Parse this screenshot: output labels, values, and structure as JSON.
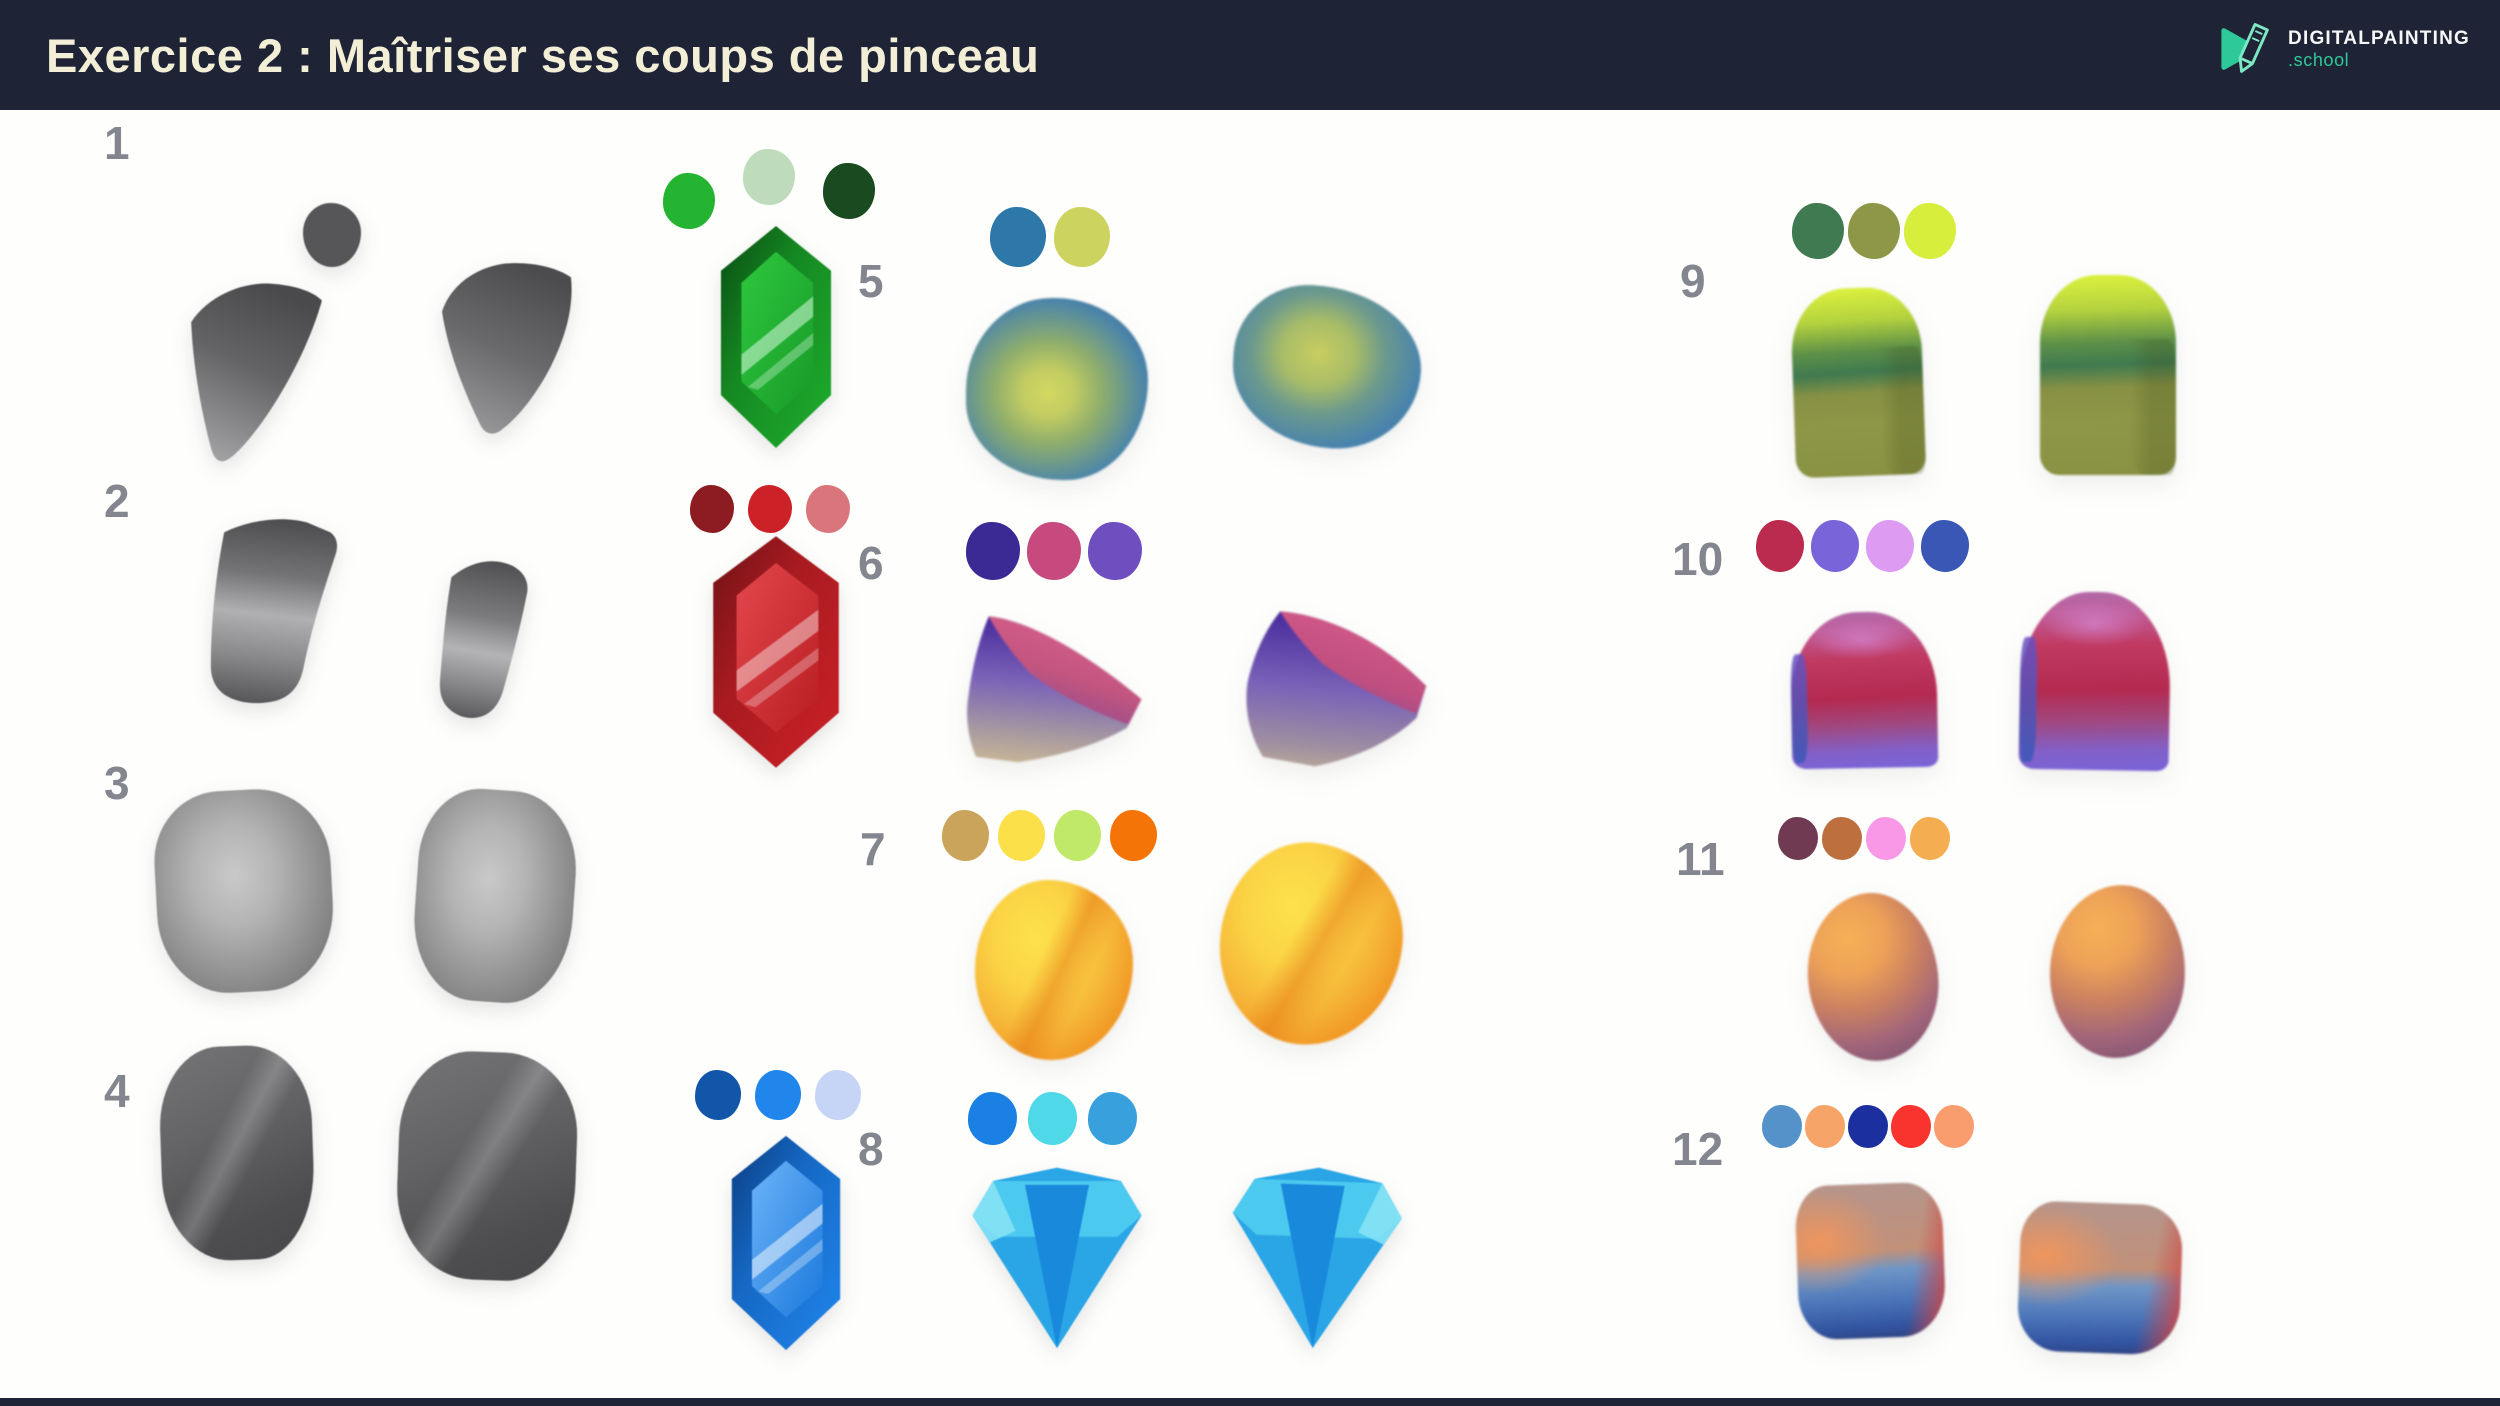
{
  "header": {
    "title": "Exercice 2 : Maîtriser ses coups de pinceau",
    "band_color": "#1f2336",
    "title_color": "#f2efd6"
  },
  "logo": {
    "name": "DIGITALPAINTING",
    "tld": ".school",
    "accent_color": "#2ec998",
    "name_color": "#f5f7f6"
  },
  "canvas": {
    "bg_color": "#fefefc",
    "label_color": "#83868e"
  },
  "exercises": [
    {
      "number": "1",
      "subject": "grey-fin-brush-strokes",
      "palette": []
    },
    {
      "number": "2",
      "subject": "grey-curved-band-strokes",
      "palette": []
    },
    {
      "number": "3",
      "subject": "grey-soft-rock-pair",
      "palette": []
    },
    {
      "number": "4",
      "subject": "grey-faceted-rock-pair",
      "palette": []
    },
    {
      "number": "5",
      "subject": "blue-yellow-rock-pair",
      "palette": [
        "#2e77a9",
        "#ccd35e"
      ]
    },
    {
      "number": "6",
      "subject": "purple-pink-cube-rock-pair",
      "palette": [
        "#3b2a94",
        "#c74a7e",
        "#6f4fc0"
      ]
    },
    {
      "number": "7",
      "subject": "orange-yellow-blob-pair",
      "palette": [
        "#c9a45a",
        "#fbe04a",
        "#c0e969",
        "#f47408"
      ]
    },
    {
      "number": "8",
      "subject": "blue-diamond-pair",
      "palette": [
        "#1b80e4",
        "#4fd8e8",
        "#38a0dc"
      ]
    },
    {
      "number": "9",
      "subject": "green-loaf-cube-pair",
      "palette": [
        "#3f7a51",
        "#8e9647",
        "#d7ee3d"
      ]
    },
    {
      "number": "10",
      "subject": "magenta-purple-dome-pair",
      "palette": [
        "#bb2b50",
        "#7a64da",
        "#dd9bf2",
        "#3a57b6"
      ]
    },
    {
      "number": "11",
      "subject": "orange-mauve-sphere-pair",
      "palette": [
        "#713a53",
        "#bd6f3e",
        "#f898e6",
        "#f5ad52"
      ]
    },
    {
      "number": "12",
      "subject": "salmon-blue-boulder-pair",
      "palette": [
        "#5692ca",
        "#f7a469",
        "#1c2f9e",
        "#f9332e",
        "#f99d6e"
      ]
    }
  ],
  "gem_studies": [
    {
      "name": "green-rupee-gem",
      "palette": [
        "#25b432",
        "#bedcbc",
        "#194a20"
      ]
    },
    {
      "name": "red-rupee-gem",
      "palette": [
        "#8c1c22",
        "#cc2127",
        "#d8767b"
      ]
    },
    {
      "name": "blue-rupee-gem",
      "palette": [
        "#1156a8",
        "#2086ec",
        "#c6d4f6"
      ]
    }
  ]
}
